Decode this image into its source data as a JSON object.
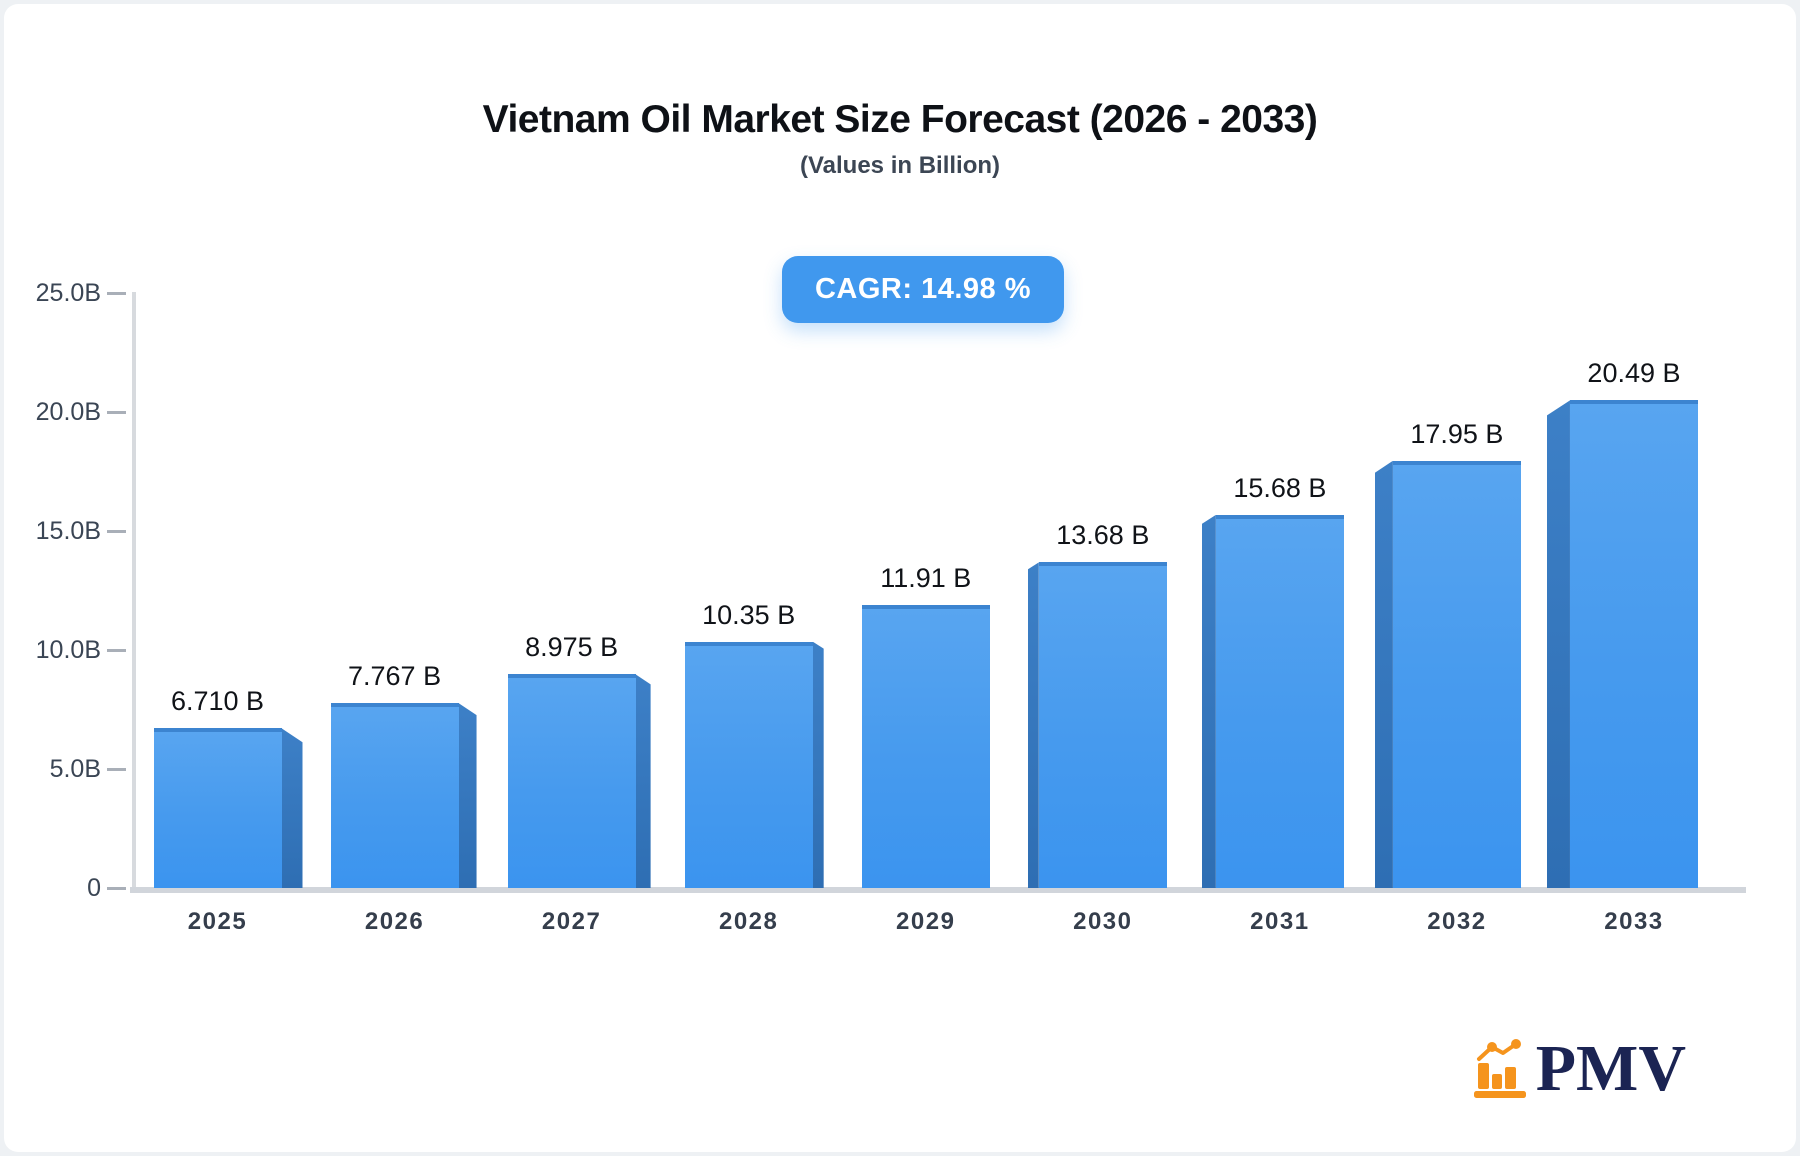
{
  "page": {
    "background_color": "#eef1f4",
    "card_background": "#ffffff"
  },
  "header": {
    "title": "Vietnam Oil Market Size Forecast (2026 - 2033)",
    "subtitle": "(Values in Billion)",
    "cagr_badge": {
      "label": "CAGR: 14.98 %",
      "background": "#4098ee",
      "text_color": "#ffffff"
    }
  },
  "chart_data": {
    "type": "bar",
    "title": "Vietnam Oil Market Size Forecast (2026 - 2033)",
    "subtitle": "(Values in Billion)",
    "categories": [
      "2025",
      "2026",
      "2027",
      "2028",
      "2029",
      "2030",
      "2031",
      "2032",
      "2033"
    ],
    "values": [
      6.71,
      7.767,
      8.975,
      10.35,
      11.91,
      13.68,
      15.68,
      17.95,
      20.49
    ],
    "value_labels": [
      "6.710 B",
      "7.767 B",
      "8.975 B",
      "10.35 B",
      "11.91 B",
      "13.68 B",
      "15.68 B",
      "17.95 B",
      "20.49 B"
    ],
    "unit": "Billion",
    "ylim": [
      0,
      25
    ],
    "y_tick_values": [
      25,
      20,
      15,
      10,
      5,
      0
    ],
    "y_tick_labels": [
      "25.0B",
      "20.0B",
      "15.0B",
      "10.0B",
      "5.0B",
      "0"
    ],
    "grid": "off",
    "legend": "none",
    "style": {
      "bar_face_top": "#58a5f0",
      "bar_face_bottom": "#3b94ef",
      "bar_top_edge": "#3c84d0",
      "bar_side": "#2f73b7",
      "effect": "3d-perspective-center-vanishing"
    }
  },
  "footer": {
    "logo": {
      "icon": "bar-chart-logo-icon",
      "icon_color": "#f5941d",
      "text": "PMV",
      "text_color": "#1b2453"
    }
  }
}
